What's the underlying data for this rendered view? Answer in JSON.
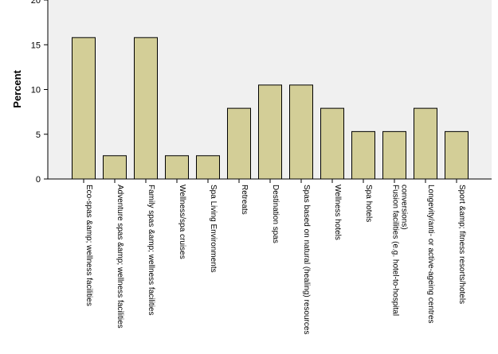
{
  "chart_data": {
    "type": "bar",
    "ylabel": "Percent",
    "xlabel": "",
    "ylim": [
      0,
      20
    ],
    "yticks": [
      0,
      5,
      10,
      15,
      20
    ],
    "grid": false,
    "colors": {
      "plot_background": "#f0f0f0",
      "bar_fill": "#d3ce97",
      "bar_stroke": "#000000",
      "axis": "#000000"
    },
    "categories": [
      "Eco-spas &amp; wellness facilities",
      "Adventure spas &amp; wellness facilities",
      "Family spas &amp; wellness facilities",
      "Wellness/spa cruises",
      "Spa Living Environments",
      "Retreats",
      "Destination spas",
      "Spas based on natural (healing) resources",
      "Wellness hotels",
      "Spa hotels",
      "Fusion facilities (e.g. hotel-to-hospital conversions)",
      "Longevity/anti- or active-ageing centres",
      "Sport &amp; fitness resorts/hotels"
    ],
    "category_lines": [
      [
        "Eco-spas &amp; wellness facilities"
      ],
      [
        "Adventure spas &amp; wellness facilities"
      ],
      [
        "Family spas &amp; wellness facilities"
      ],
      [
        "Wellness/spa cruises"
      ],
      [
        "Spa Living Environments"
      ],
      [
        "Retreats"
      ],
      [
        "Destination spas"
      ],
      [
        "Spas based on natural (healing) resources"
      ],
      [
        "Wellness hotels"
      ],
      [
        "Spa hotels"
      ],
      [
        "Fusion facilities (e.g. hotel-to-hospital",
        "conversions)"
      ],
      [
        "Longevity/anti- or active-ageing centres"
      ],
      [
        "Sport &amp; fitness resorts/hotels"
      ]
    ],
    "values": [
      15.8,
      2.6,
      15.8,
      2.6,
      2.6,
      7.9,
      10.5,
      10.5,
      7.9,
      5.3,
      5.3,
      7.9,
      5.3
    ]
  }
}
